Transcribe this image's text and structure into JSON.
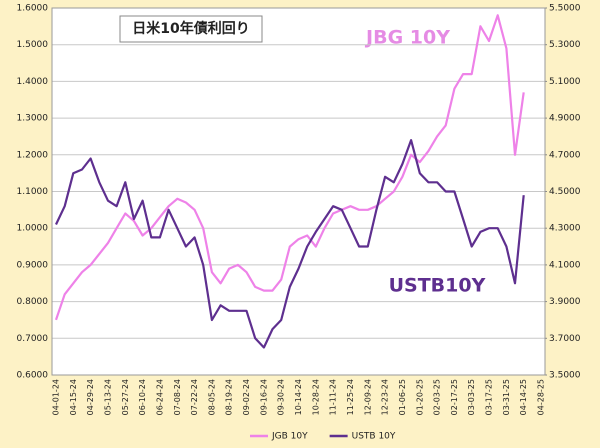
{
  "chart_data": {
    "type": "line",
    "annotations": [
      "日米10年債利回り",
      "JBG 10Y",
      "USTB10Y"
    ],
    "categories": [
      "04-01-24",
      null,
      "04-15-24",
      null,
      "04-29-24",
      null,
      "05-13-24",
      null,
      "05-27-24",
      null,
      "06-10-24",
      null,
      "06-24-24",
      null,
      "07-08-24",
      null,
      "07-22-24",
      null,
      "08-05-24",
      null,
      "08-19-24",
      null,
      "09-02-24",
      null,
      "09-16-24",
      null,
      "09-30-24",
      null,
      "10-14-24",
      null,
      "10-28-24",
      null,
      "11-11-24",
      null,
      "11-25-24",
      null,
      "12-09-24",
      null,
      "12-23-24",
      null,
      "01-06-25",
      null,
      "01-20-25",
      null,
      "02-03-25",
      null,
      "02-17-25",
      null,
      "03-03-25",
      null,
      "03-17-25",
      null,
      "03-31-25",
      null,
      "04-14-25",
      null,
      "04-28-25"
    ],
    "series": [
      {
        "name": "JGB 10Y",
        "color": "#ee82e8",
        "axis": "y",
        "values": [
          0.75,
          0.82,
          0.85,
          0.88,
          0.9,
          0.93,
          0.96,
          1.0,
          1.04,
          1.02,
          0.98,
          1.0,
          1.03,
          1.06,
          1.08,
          1.07,
          1.05,
          1.0,
          0.88,
          0.85,
          0.89,
          0.9,
          0.88,
          0.84,
          0.83,
          0.83,
          0.86,
          0.95,
          0.97,
          0.98,
          0.95,
          1.0,
          1.04,
          1.05,
          1.06,
          1.05,
          1.05,
          1.06,
          1.08,
          1.1,
          1.14,
          1.2,
          1.18,
          1.21,
          1.25,
          1.28,
          1.38,
          1.42,
          1.42,
          1.55,
          1.51,
          1.58,
          1.49,
          1.2,
          1.37,
          null,
          null
        ]
      },
      {
        "name": "USTB 10Y",
        "color": "#5e2f8f",
        "axis": "y2",
        "values": [
          4.32,
          4.42,
          4.6,
          4.62,
          4.68,
          4.55,
          4.45,
          4.42,
          4.55,
          4.35,
          4.45,
          4.25,
          4.25,
          4.4,
          4.3,
          4.2,
          4.25,
          4.1,
          3.8,
          3.88,
          3.85,
          3.85,
          3.85,
          3.7,
          3.65,
          3.75,
          3.8,
          3.98,
          4.08,
          4.2,
          4.28,
          4.35,
          4.42,
          4.4,
          4.3,
          4.2,
          4.2,
          4.4,
          4.58,
          4.55,
          4.65,
          4.78,
          4.6,
          4.55,
          4.55,
          4.5,
          4.5,
          4.35,
          4.2,
          4.28,
          4.3,
          4.3,
          4.2,
          4.0,
          4.48,
          null,
          null
        ]
      }
    ],
    "ylim": [
      0.6,
      1.6
    ],
    "yticks": [
      {
        "value": 0.6,
        "label": "0.6000"
      },
      {
        "value": 0.7,
        "label": "0.7000"
      },
      {
        "value": 0.8,
        "label": "0.8000"
      },
      {
        "value": 0.9,
        "label": "0.9000"
      },
      {
        "value": 1.0,
        "label": "1.0000"
      },
      {
        "value": 1.1,
        "label": "1.1000"
      },
      {
        "value": 1.2,
        "label": "1.2000"
      },
      {
        "value": 1.3,
        "label": "1.3000"
      },
      {
        "value": 1.4,
        "label": "1.4000"
      },
      {
        "value": 1.5,
        "label": "1.5000"
      },
      {
        "value": 1.6,
        "label": "1.6000"
      }
    ],
    "y2lim": [
      3.5,
      5.5
    ],
    "y2ticks": [
      {
        "value": 3.5,
        "label": "3.5000"
      },
      {
        "value": 3.7,
        "label": "3.7000"
      },
      {
        "value": 3.9,
        "label": "3.9000"
      },
      {
        "value": 4.1,
        "label": "4.1000"
      },
      {
        "value": 4.3,
        "label": "4.3000"
      },
      {
        "value": 4.5,
        "label": "4.5000"
      },
      {
        "value": 4.7,
        "label": "4.7000"
      },
      {
        "value": 4.9,
        "label": "4.9000"
      },
      {
        "value": 5.1,
        "label": "5.1000"
      },
      {
        "value": 5.3,
        "label": "5.3000"
      },
      {
        "value": 5.5,
        "label": "5.5000"
      }
    ],
    "grid": true,
    "legend": "bottom"
  }
}
